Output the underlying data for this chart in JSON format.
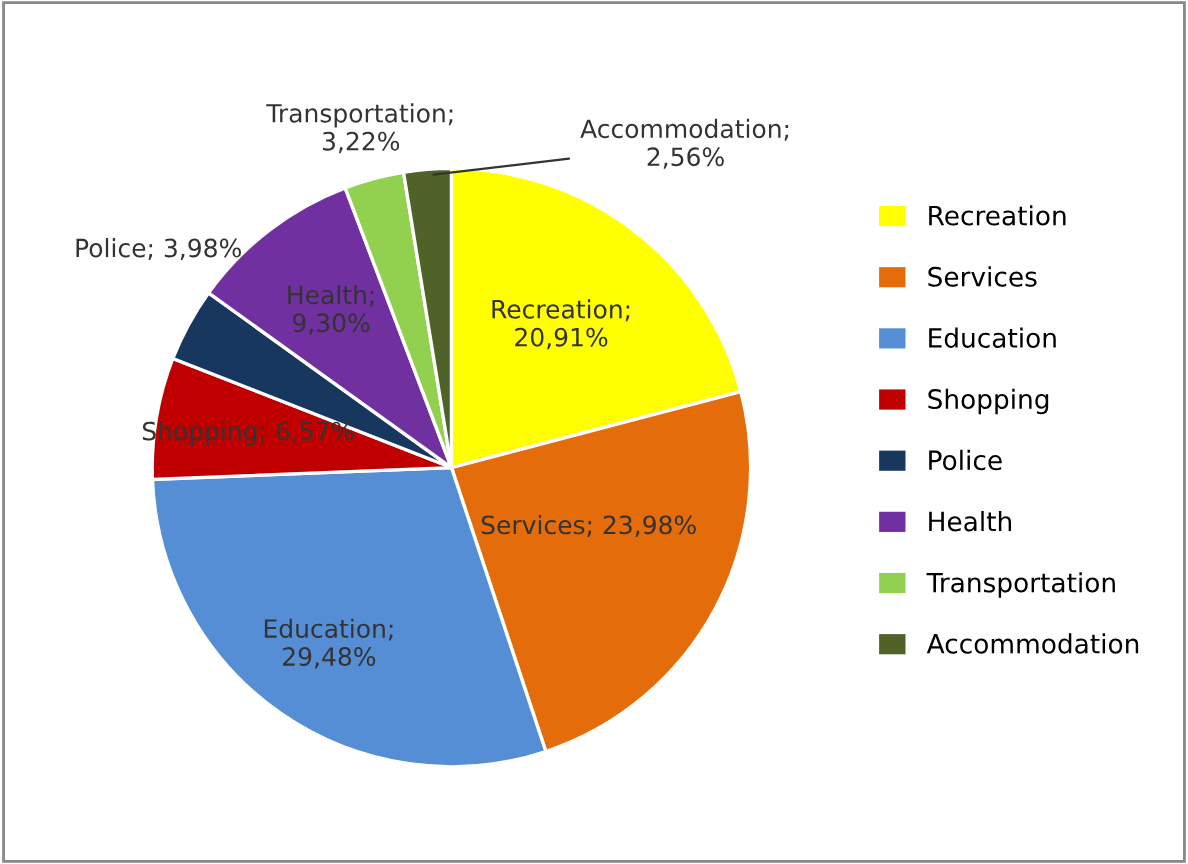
{
  "chart_data": {
    "type": "pie",
    "categories": [
      "Recreation",
      "Services",
      "Education",
      "Shopping",
      "Police",
      "Health",
      "Transportation",
      "Accommodation"
    ],
    "values": [
      20.91,
      23.98,
      29.48,
      6.57,
      3.98,
      9.3,
      3.22,
      2.56
    ],
    "colors": [
      "#ffff00",
      "#e46c0a",
      "#558ed5",
      "#c00000",
      "#17375e",
      "#7030a0",
      "#92d050",
      "#4f6228"
    ],
    "value_labels": [
      "Recreation;\n20,91%",
      "Services; 23,98%",
      "Education;\n29,48%",
      "Shopping; 6,57%",
      "Police; 3,98%",
      "Health;\n9,30%",
      "Transportation;\n3,22%",
      "Accommodation;\n2,56%"
    ],
    "legend": "right"
  }
}
